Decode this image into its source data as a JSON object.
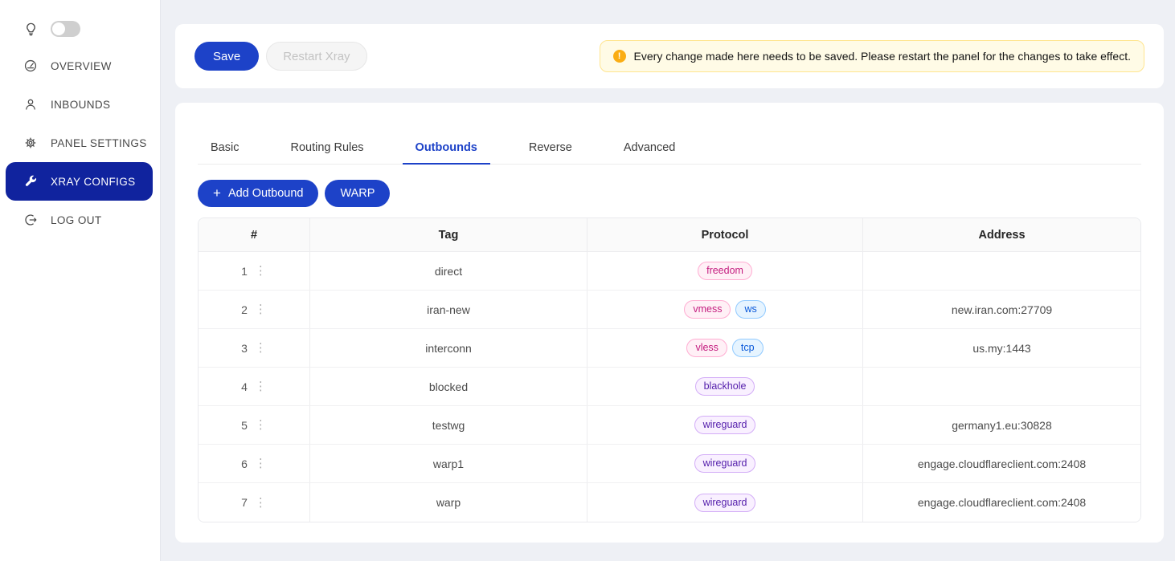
{
  "sidebar": {
    "theme_toggle": {
      "state": "off"
    },
    "items": [
      {
        "label": "OVERVIEW",
        "icon": "dashboard-icon",
        "active": false
      },
      {
        "label": "INBOUNDS",
        "icon": "user-icon",
        "active": false
      },
      {
        "label": "PANEL SETTINGS",
        "icon": "gear-icon",
        "active": false
      },
      {
        "label": "XRAY CONFIGS",
        "icon": "wrench-icon",
        "active": true
      },
      {
        "label": "LOG OUT",
        "icon": "logout-icon",
        "active": false
      }
    ]
  },
  "toolbar": {
    "save_label": "Save",
    "restart_label": "Restart Xray",
    "alert_text": "Every change made here needs to be saved. Please restart the panel for the changes to take effect."
  },
  "tabs": [
    {
      "label": "Basic",
      "active": false
    },
    {
      "label": "Routing Rules",
      "active": false
    },
    {
      "label": "Outbounds",
      "active": true
    },
    {
      "label": "Reverse",
      "active": false
    },
    {
      "label": "Advanced",
      "active": false
    }
  ],
  "actions": {
    "add_outbound_label": "Add Outbound",
    "warp_label": "WARP"
  },
  "table": {
    "columns": [
      "#",
      "Tag",
      "Protocol",
      "Address"
    ],
    "rows": [
      {
        "num": "1",
        "tag": "direct",
        "protocols": [
          {
            "text": "freedom",
            "color": "magenta"
          }
        ],
        "address": ""
      },
      {
        "num": "2",
        "tag": "iran-new",
        "protocols": [
          {
            "text": "vmess",
            "color": "magenta"
          },
          {
            "text": "ws",
            "color": "blue"
          }
        ],
        "address": "new.iran.com:27709"
      },
      {
        "num": "3",
        "tag": "interconn",
        "protocols": [
          {
            "text": "vless",
            "color": "magenta"
          },
          {
            "text": "tcp",
            "color": "blue"
          }
        ],
        "address": "us.my:1443"
      },
      {
        "num": "4",
        "tag": "blocked",
        "protocols": [
          {
            "text": "blackhole",
            "color": "purple"
          }
        ],
        "address": ""
      },
      {
        "num": "5",
        "tag": "testwg",
        "protocols": [
          {
            "text": "wireguard",
            "color": "purple"
          }
        ],
        "address": "germany1.eu:30828"
      },
      {
        "num": "6",
        "tag": "warp1",
        "protocols": [
          {
            "text": "wireguard",
            "color": "purple"
          }
        ],
        "address": "engage.cloudflareclient.com:2408"
      },
      {
        "num": "7",
        "tag": "warp",
        "protocols": [
          {
            "text": "wireguard",
            "color": "purple"
          }
        ],
        "address": "engage.cloudflareclient.com:2408"
      }
    ]
  },
  "colors": {
    "primary": "#1d42c8",
    "nav_active": "#10239e",
    "warning_bg": "#fffbe6",
    "warning_border": "#ffe58f",
    "warning_icon": "#faad14",
    "badge_styles": {
      "magenta": {
        "bg": "#fff0f6",
        "border": "#ffadd2",
        "text": "#c41d7f"
      },
      "purple": {
        "bg": "#f9f0ff",
        "border": "#d3adf7",
        "text": "#531dab"
      },
      "blue": {
        "bg": "#e6f4ff",
        "border": "#91caff",
        "text": "#0958d9"
      }
    }
  }
}
